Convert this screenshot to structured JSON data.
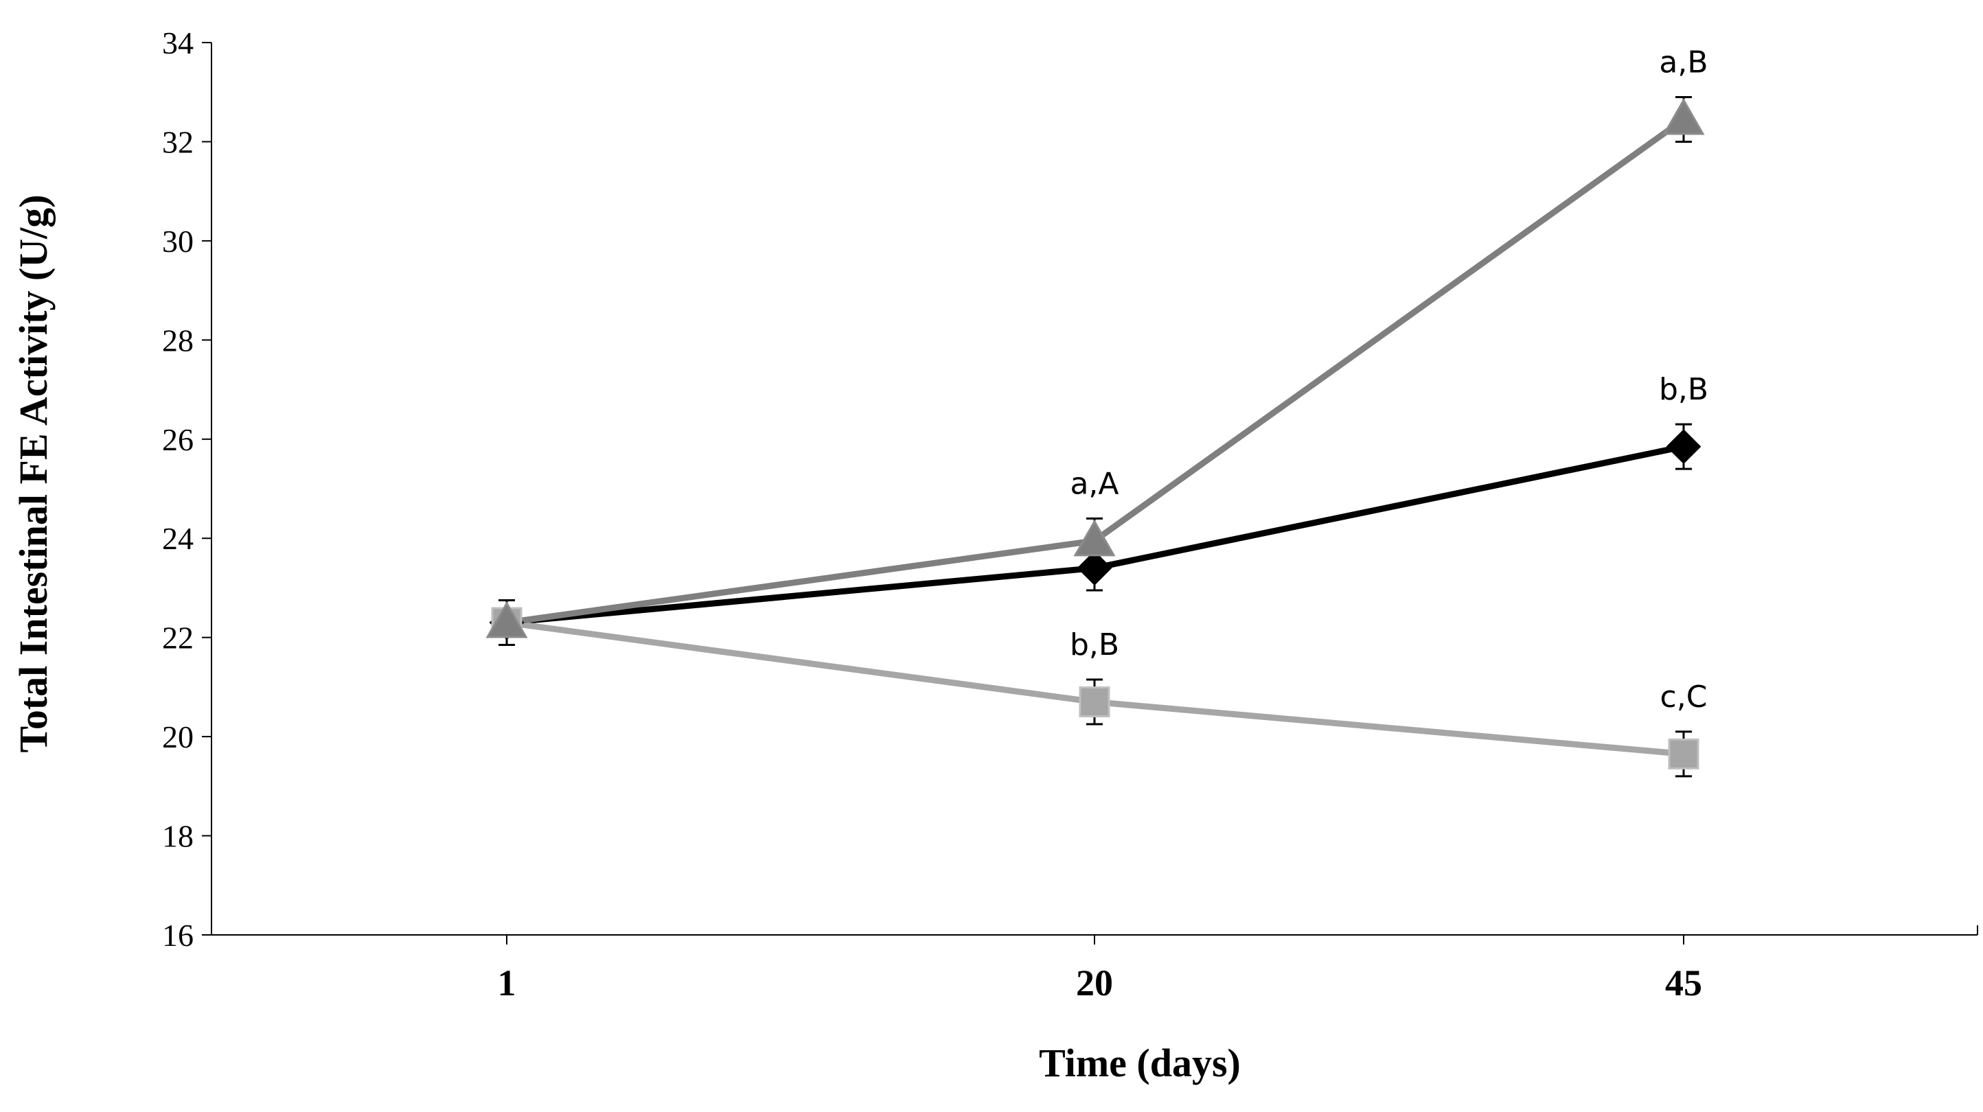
{
  "chart_data": {
    "type": "line",
    "title": "",
    "xlabel": "Time (days)",
    "ylabel": "Total Intestinal FE Activity (U/g)",
    "categories": [
      "1",
      "20",
      "45"
    ],
    "ylim": [
      16,
      34
    ],
    "yticks": [
      16,
      18,
      20,
      22,
      24,
      26,
      28,
      30,
      32,
      34
    ],
    "grid": false,
    "legend": "none",
    "series": [
      {
        "name": "diamond-series",
        "marker": "diamond",
        "color": "#000000",
        "values": [
          22.3,
          23.4,
          25.85
        ],
        "errors": [
          0.45,
          0.45,
          0.45
        ],
        "labels": [
          "",
          "",
          "b,B"
        ]
      },
      {
        "name": "square-series",
        "marker": "square",
        "color": "#a6a6a6",
        "values": [
          22.3,
          20.7,
          19.65
        ],
        "errors": [
          0.45,
          0.45,
          0.45
        ],
        "labels": [
          "",
          "b,B",
          "c,C"
        ]
      },
      {
        "name": "triangle-series",
        "marker": "triangle",
        "color": "#7f7f7f",
        "values": [
          22.3,
          23.95,
          32.45
        ],
        "errors": [
          0.45,
          0.45,
          0.45
        ],
        "labels": [
          "",
          "a,A",
          "a,B"
        ]
      }
    ]
  }
}
